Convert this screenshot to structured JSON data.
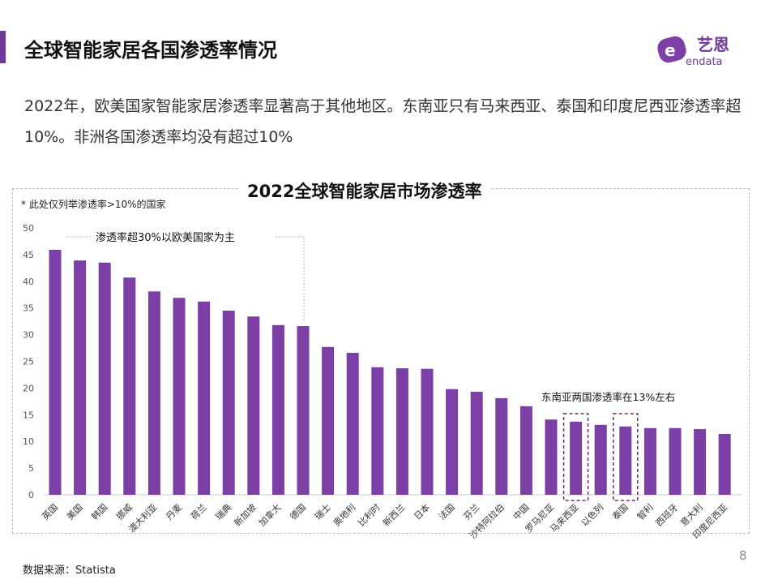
{
  "header": {
    "title": "全球智能家居各国渗透率情况",
    "logo_text": "endata",
    "logo_cn": "艺恩"
  },
  "description": "2022年，欧美国家智能家居渗透率显著高于其他地区。东南亚只有马来西亚、泰国和印度尼西亚渗透率超10%。非洲各国渗透率均没有超过10%",
  "footer": {
    "source": "数据来源：Statista",
    "page": "8"
  },
  "colors": {
    "bar": "#7b3fa5",
    "accent": "#6f3a9a"
  },
  "chart_data": {
    "type": "bar",
    "title": "2022全球智能家居市场渗透率",
    "note": "* 此处仅列举渗透率>10%的国家",
    "categories": [
      "英国",
      "美国",
      "韩国",
      "挪威",
      "澳大利亚",
      "丹麦",
      "荷兰",
      "瑞典",
      "新加坡",
      "加拿大",
      "德国",
      "瑞士",
      "奥地利",
      "比利时",
      "新西兰",
      "日本",
      "法国",
      "芬兰",
      "沙特阿拉伯",
      "中国",
      "罗马尼亚",
      "马来西亚",
      "以色列",
      "泰国",
      "智利",
      "西班牙",
      "意大利",
      "印度尼西亚"
    ],
    "values": [
      45.9,
      43.9,
      43.5,
      40.7,
      38.1,
      36.9,
      36.2,
      34.5,
      33.4,
      31.8,
      31.6,
      27.7,
      26.6,
      23.9,
      23.7,
      23.6,
      19.8,
      19.3,
      18.1,
      16.6,
      14.1,
      13.7,
      13.1,
      12.8,
      12.5,
      12.5,
      12.3,
      11.4
    ],
    "ylim": [
      0,
      50
    ],
    "yticks": [
      0,
      5,
      10,
      15,
      20,
      25,
      30,
      35,
      40,
      45,
      50
    ],
    "grid": false,
    "annotations": [
      {
        "text": "渗透率超30%以欧美国家为主"
      },
      {
        "text": "东南亚两国渗透率在13%左右",
        "highlight": [
          "马来西亚",
          "泰国"
        ]
      }
    ]
  }
}
